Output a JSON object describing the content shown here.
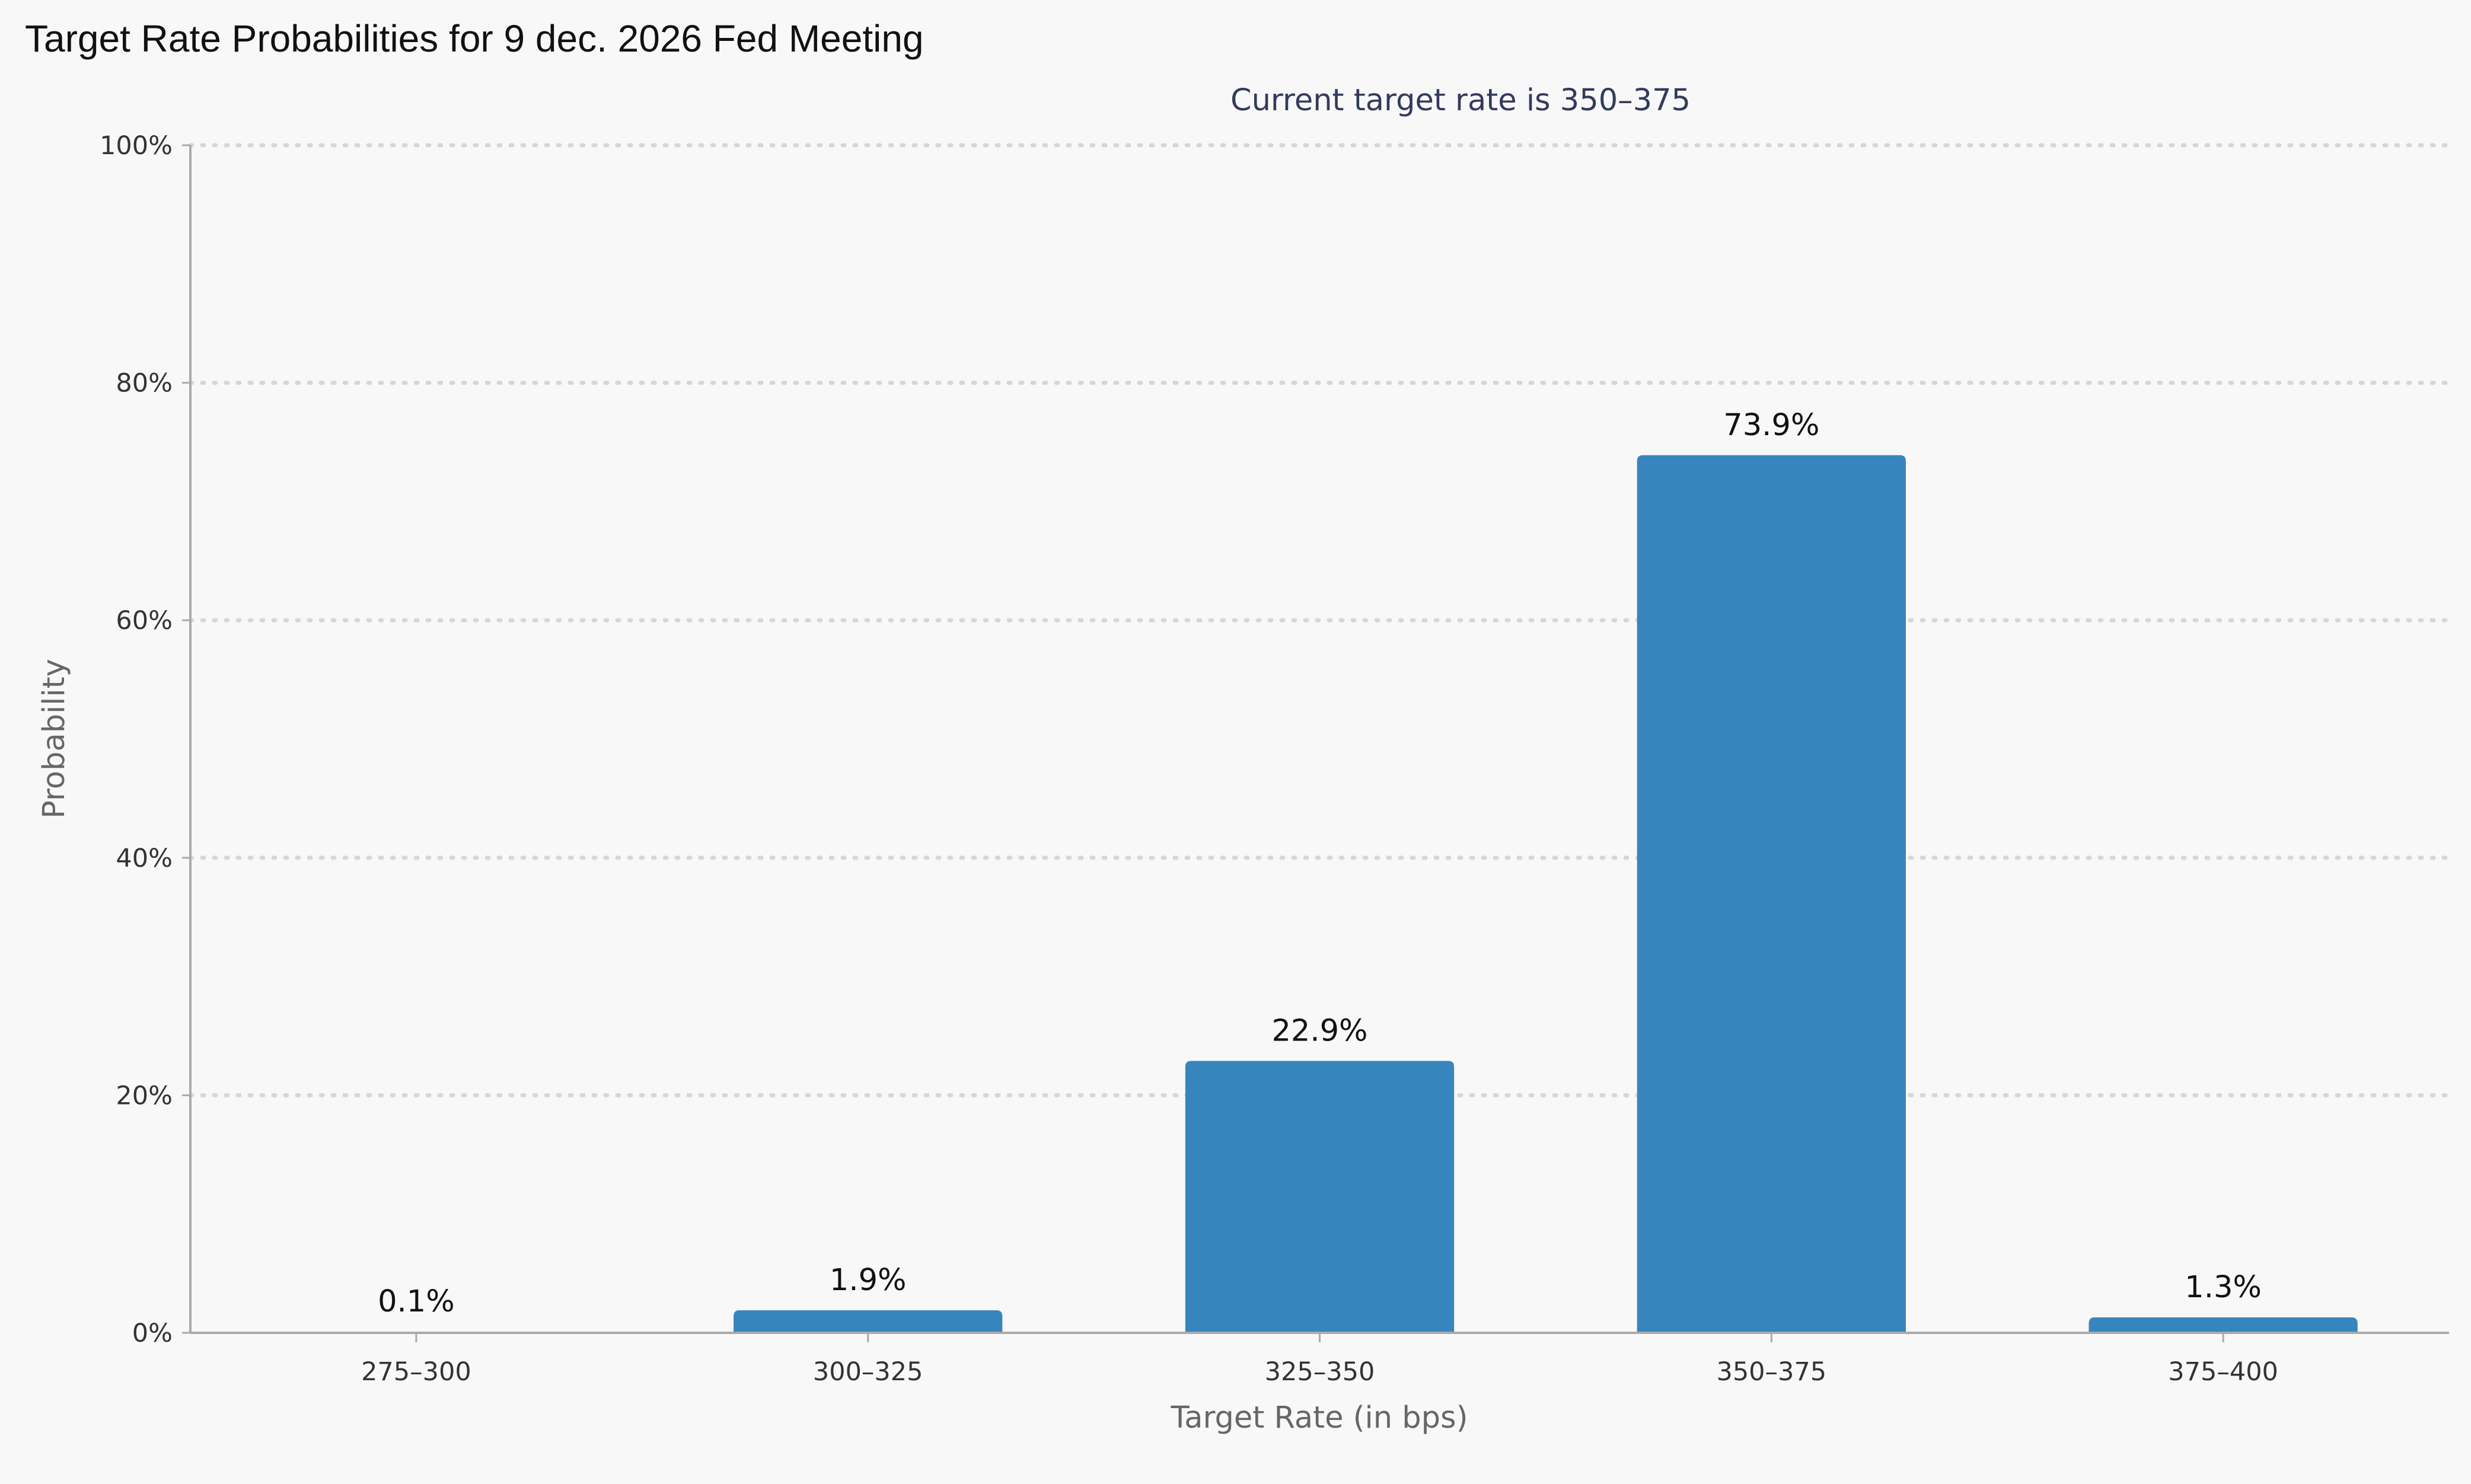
{
  "chart_data": {
    "type": "bar",
    "title": "Target Rate Probabilities for 9 dec. 2026 Fed Meeting",
    "subtitle": "Current target rate is 350–375",
    "xlabel": "Target Rate (in bps)",
    "ylabel": "Probability",
    "categories": [
      "275–300",
      "300–325",
      "325–350",
      "350–375",
      "375–400"
    ],
    "values": [
      0.1,
      1.9,
      22.9,
      73.9,
      1.3
    ],
    "data_labels": [
      "0.1%",
      "1.9%",
      "22.9%",
      "73.9%",
      "1.3%"
    ],
    "ylim": [
      0,
      100
    ],
    "yticks": [
      0,
      20,
      40,
      60,
      80,
      100
    ],
    "ytick_labels": [
      "0%",
      "20%",
      "40%",
      "60%",
      "80%",
      "100%"
    ],
    "grid": true,
    "legend": "none",
    "bar_color": "#3785bd"
  }
}
